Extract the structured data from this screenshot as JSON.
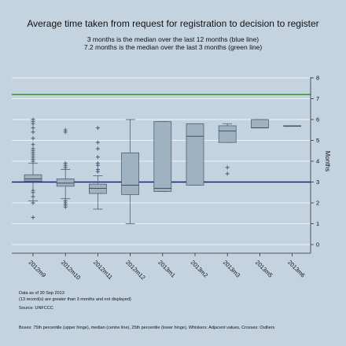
{
  "chart_data": {
    "type": "box",
    "title": "Average time taken from request for registration to decision to register",
    "subtitles": [
      "3 months is the median over the last 12 months (blue line)",
      "7.2 months is the median over the last 3 months (green line)"
    ],
    "ylabel": "Months",
    "ylim": [
      -0.4,
      8
    ],
    "yticks": [
      0,
      1,
      2,
      3,
      4,
      5,
      6,
      7,
      8
    ],
    "grid": true,
    "reference_lines": [
      {
        "value": 3,
        "color": "#1a1aa0"
      },
      {
        "value": 7.2,
        "color": "#2e8b2e"
      }
    ],
    "categories": [
      "2012m9",
      "2012m10",
      "2012m11",
      "2012m12",
      "2013m1",
      "2013m2",
      "2013m3",
      "2013m5",
      "2013m6"
    ],
    "boxes": [
      {
        "min": 2.1,
        "q1": 3.05,
        "median": 3.15,
        "q3": 3.35,
        "max": 3.9,
        "outliers": [
          1.3,
          2.0,
          2.3,
          2.5,
          2.6,
          4.0,
          4.1,
          4.2,
          4.3,
          4.4,
          4.5,
          4.6,
          4.8,
          5.1,
          5.4,
          5.6,
          5.8,
          5.9,
          6.0
        ]
      },
      {
        "min": 2.2,
        "q1": 2.8,
        "median": 2.95,
        "q3": 3.15,
        "max": 3.6,
        "outliers": [
          1.8,
          1.9,
          2.0,
          2.1,
          3.7,
          3.8,
          3.9,
          5.4,
          5.5
        ]
      },
      {
        "min": 1.7,
        "q1": 2.45,
        "median": 2.7,
        "q3": 2.9,
        "max": 3.3,
        "outliers": [
          3.5,
          3.6,
          3.8,
          3.9,
          4.2,
          4.6,
          4.9,
          5.6
        ]
      },
      {
        "min": 1.0,
        "q1": 2.4,
        "median": 2.85,
        "q3": 4.4,
        "max": 6.0,
        "outliers": []
      },
      {
        "min": 2.55,
        "q1": 2.55,
        "median": 2.7,
        "q3": 5.9,
        "max": 5.9,
        "outliers": []
      },
      {
        "min": 2.85,
        "q1": 2.85,
        "median": 5.2,
        "q3": 5.8,
        "max": 5.8,
        "outliers": []
      },
      {
        "min": 4.9,
        "q1": 4.9,
        "median": 5.45,
        "q3": 5.7,
        "max": 5.8,
        "outliers": [
          3.4,
          3.7
        ]
      },
      {
        "min": 5.6,
        "q1": 5.6,
        "median": 5.6,
        "q3": 6.0,
        "max": 6.0,
        "outliers": []
      },
      {
        "min": 5.7,
        "q1": 5.7,
        "median": 5.7,
        "q3": 5.7,
        "max": 5.7,
        "outliers": []
      }
    ],
    "notes": [
      "Data as of 30 Sep 2013",
      "(13 record(s) are greater than 3 months and not displayed)",
      "Source: UNFCCC"
    ],
    "footer": "Boxes: 75th percentile (upper hinge), median (centre line), 25th percentile (lower hinge), Whiskers: Adjacent values, Crosses: Outliers",
    "colors": {
      "background": "#c4d3e0",
      "plot": "#c4d3e0",
      "grid": "#eef3f7",
      "box_fill": "#9fb2c2",
      "box_stroke": "#4b6173",
      "median": "#3b5366",
      "outlier": "#445c70"
    }
  }
}
